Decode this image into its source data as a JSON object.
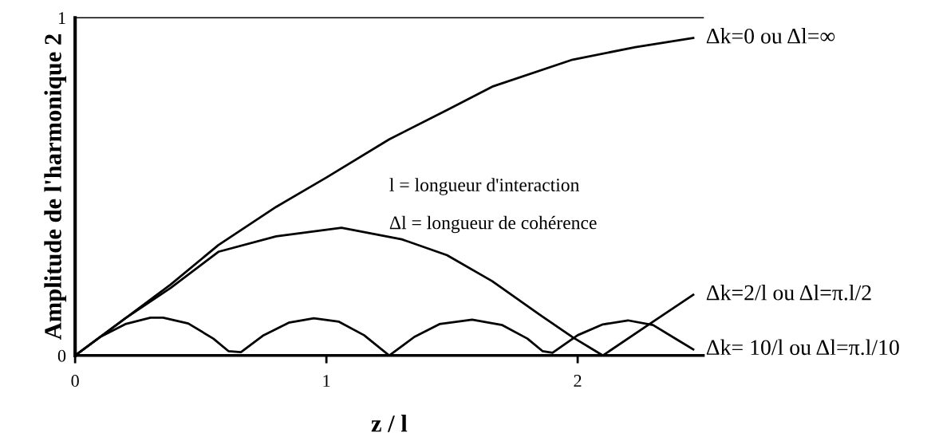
{
  "chart_data": {
    "type": "line",
    "xlabel": "z / l",
    "ylabel": "Amplitude de l'harmonique 2",
    "x": [
      0,
      0.2,
      0.38,
      0.57,
      0.8,
      1.0,
      1.25,
      1.48,
      1.66,
      1.98,
      2.23,
      2.46
    ],
    "series": [
      {
        "name": "Δk=0 ou Δl=∞",
        "color": "#000000",
        "values": [
          0,
          0.11,
          0.21,
          0.327,
          0.44,
          0.527,
          0.64,
          0.727,
          0.796,
          0.876,
          0.913,
          0.94
        ]
      },
      {
        "name": "Δk=2/l ou Δl=π.l/2",
        "color": "#000000",
        "x": [
          0,
          0.2,
          0.38,
          0.57,
          0.8,
          1.06,
          1.3,
          1.48,
          1.66,
          1.85,
          1.98,
          2.1,
          2.3,
          2.46
        ],
        "values": [
          0,
          0.11,
          0.2,
          0.307,
          0.353,
          0.378,
          0.344,
          0.297,
          0.22,
          0.12,
          0.054,
          0,
          0.1,
          0.18
        ]
      },
      {
        "name": "Δk= 10/l ou Δl=π.l/10",
        "color": "#000000",
        "x": [
          0,
          0.1,
          0.2,
          0.3,
          0.35,
          0.45,
          0.55,
          0.61,
          0.66,
          0.75,
          0.85,
          0.95,
          1.05,
          1.15,
          1.25,
          1.35,
          1.45,
          1.58,
          1.7,
          1.8,
          1.86,
          1.9,
          2.0,
          2.1,
          2.2,
          2.3,
          2.4,
          2.46
        ],
        "values": [
          0,
          0.055,
          0.093,
          0.112,
          0.112,
          0.095,
          0.05,
          0.013,
          0.01,
          0.06,
          0.097,
          0.11,
          0.1,
          0.06,
          0,
          0.055,
          0.093,
          0.106,
          0.09,
          0.05,
          0.013,
          0.008,
          0.06,
          0.092,
          0.104,
          0.09,
          0.045,
          0.018
        ]
      }
    ],
    "xlim": [
      0,
      2.5
    ],
    "ylim": [
      0,
      1
    ],
    "xticks": [
      0,
      1,
      2
    ],
    "yticks": [
      0,
      1
    ],
    "annotations": [
      "l = longueur d'interaction",
      "Δl = longueur de cohérence"
    ],
    "grid": false,
    "legend": false,
    "marker": "none",
    "line_style": "solid"
  }
}
